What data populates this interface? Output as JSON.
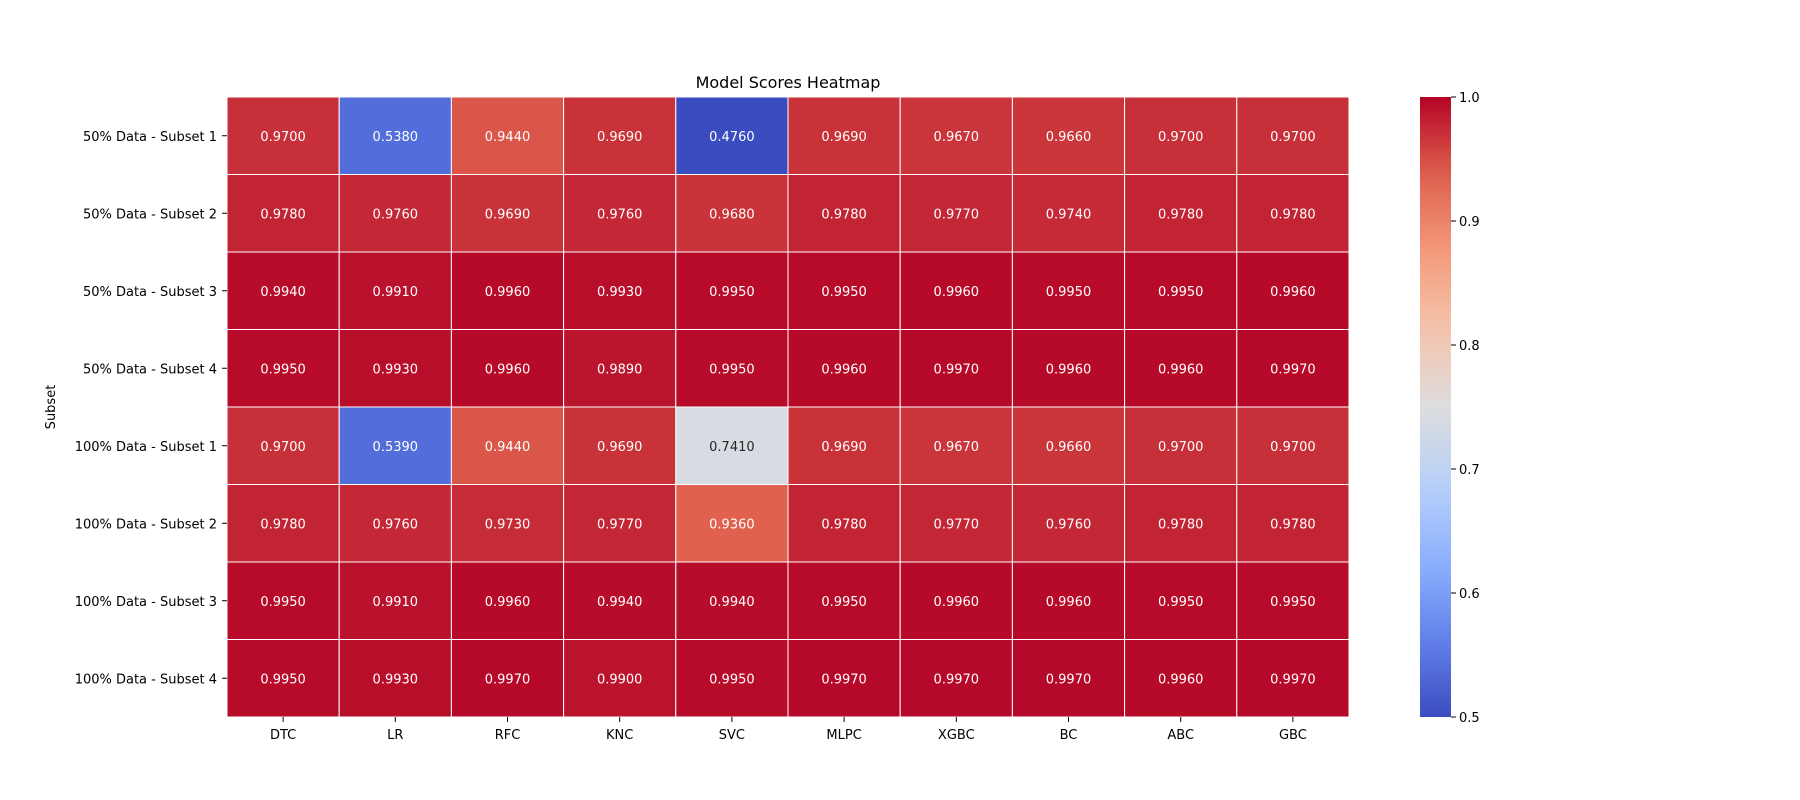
{
  "chart_data": {
    "type": "heatmap",
    "title": "Model Scores Heatmap",
    "xlabel": "",
    "ylabel": "Subset",
    "x_categories": [
      "DTC",
      "LR",
      "RFC",
      "KNC",
      "SVC",
      "MLPC",
      "XGBC",
      "BC",
      "ABC",
      "GBC"
    ],
    "y_categories": [
      "50% Data - Subset 1",
      "50% Data - Subset 2",
      "50% Data - Subset 3",
      "50% Data - Subset 4",
      "100% Data - Subset 1",
      "100% Data - Subset 2",
      "100% Data - Subset 3",
      "100% Data - Subset 4"
    ],
    "values": [
      [
        0.97,
        0.538,
        0.944,
        0.969,
        0.476,
        0.969,
        0.967,
        0.966,
        0.97,
        0.97
      ],
      [
        0.978,
        0.976,
        0.969,
        0.976,
        0.968,
        0.978,
        0.977,
        0.974,
        0.978,
        0.978
      ],
      [
        0.994,
        0.991,
        0.996,
        0.993,
        0.995,
        0.995,
        0.996,
        0.995,
        0.995,
        0.996
      ],
      [
        0.995,
        0.993,
        0.996,
        0.989,
        0.995,
        0.996,
        0.997,
        0.996,
        0.996,
        0.997
      ],
      [
        0.97,
        0.539,
        0.944,
        0.969,
        0.741,
        0.969,
        0.967,
        0.966,
        0.97,
        0.97
      ],
      [
        0.978,
        0.976,
        0.973,
        0.977,
        0.936,
        0.978,
        0.977,
        0.976,
        0.978,
        0.978
      ],
      [
        0.995,
        0.991,
        0.996,
        0.994,
        0.994,
        0.995,
        0.996,
        0.996,
        0.995,
        0.995
      ],
      [
        0.995,
        0.993,
        0.997,
        0.99,
        0.995,
        0.997,
        0.997,
        0.997,
        0.996,
        0.997
      ]
    ],
    "value_format_decimals": 4,
    "colormap": "coolwarm",
    "vmin": 0.5,
    "vmax": 1.0,
    "colorbar_ticks": [
      0.5,
      0.6,
      0.7,
      0.8,
      0.9,
      1.0
    ],
    "grid_line_color": "#ffffff"
  }
}
